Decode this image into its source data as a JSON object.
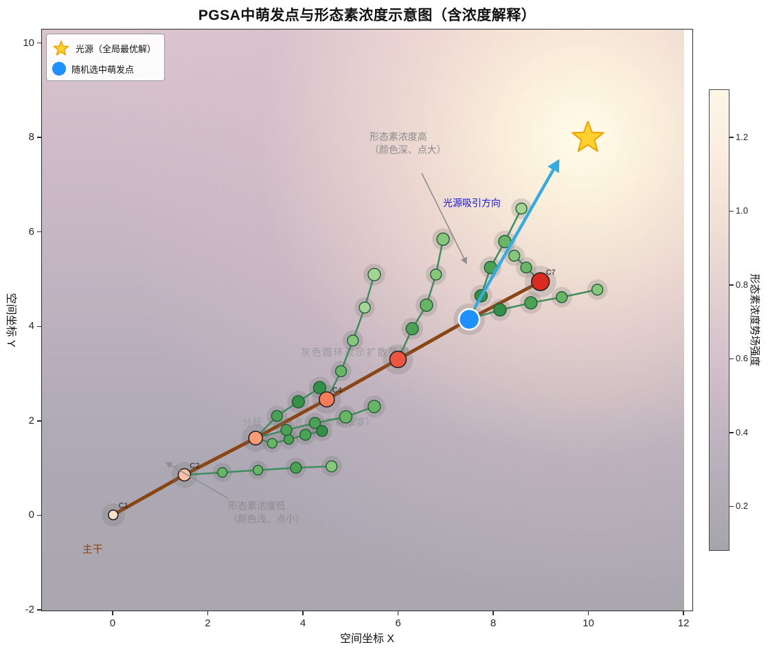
{
  "title": "PGSA中萌发点与形态素浓度示意图（含浓度解释）",
  "axes": {
    "xlabel": "空间坐标 X",
    "ylabel": "空间坐标 Y",
    "x_ticks": [
      "0",
      "2",
      "4",
      "6",
      "8",
      "10",
      "12"
    ],
    "x_tick_values": [
      0,
      2,
      4,
      6,
      8,
      10,
      12
    ],
    "y_ticks": [
      "-2",
      "0",
      "2",
      "4",
      "6",
      "8",
      "10"
    ],
    "y_tick_values": [
      -2,
      0,
      2,
      4,
      6,
      8,
      10
    ],
    "xlim": [
      -1.5,
      12.2
    ],
    "ylim": [
      -2.03,
      10.3
    ]
  },
  "colorbar": {
    "label": "形态素浓度势场强度",
    "tick_labels": [
      "0.2",
      "0.4",
      "0.6",
      "0.8",
      "1.0",
      "1.2"
    ],
    "tick_values": [
      0.2,
      0.4,
      0.6,
      0.8,
      1.0,
      1.2
    ],
    "vmin": 0.08,
    "vmax": 1.33,
    "gradient_stops": [
      "#a7a4ab",
      "#b3adb8",
      "#c4b6c3",
      "#d5c2cc",
      "#e4d1d2",
      "#f0e0d5",
      "#f9edde",
      "#fdf6e6"
    ]
  },
  "legend": {
    "items": [
      {
        "icon": "star-icon",
        "label": "光源（全局最优解）"
      },
      {
        "icon": "blue-dot-icon",
        "label": "随机选中萌发点"
      }
    ]
  },
  "chart_data": {
    "type": "scatter",
    "field": {
      "glow_center_pct": [
        84,
        18.6
      ],
      "extent_right_x": 12,
      "glow_stops": [
        [
          "rgba(255,253,232,1)",
          0
        ],
        [
          "rgba(252,241,219,0.95)",
          10
        ],
        [
          "rgba(245,222,211,0.75)",
          25
        ],
        [
          "rgba(216,191,201,0.35)",
          45
        ],
        [
          "rgba(190,176,196,0)",
          66
        ]
      ],
      "base_stops": [
        [
          "#dac4cf",
          0
        ],
        [
          "#c3b4c1",
          40
        ],
        [
          "#aeaab6",
          70
        ],
        [
          "#a9a6ae",
          100
        ]
      ]
    },
    "trunk": {
      "color": "#8b4513",
      "width": 5,
      "path": [
        [
          0,
          0
        ],
        [
          1.5,
          0.85
        ],
        [
          3,
          1.63
        ],
        [
          4.5,
          2.45
        ],
        [
          6,
          3.3
        ],
        [
          7.5,
          4.15
        ],
        [
          9,
          4.95
        ]
      ],
      "nodes": [
        {
          "id": "C1",
          "x": 0,
          "y": 0,
          "r": 7,
          "color": "#fee0cd",
          "label": true
        },
        {
          "id": "C2",
          "x": 1.5,
          "y": 0.85,
          "r": 9,
          "color": "#fcc2a5",
          "label": true
        },
        {
          "id": "C3",
          "x": 3.0,
          "y": 1.63,
          "r": 10,
          "color": "#fc9b76",
          "label": false
        },
        {
          "id": "C4",
          "x": 4.5,
          "y": 2.45,
          "r": 11,
          "color": "#f97c58",
          "label": true
        },
        {
          "id": "C5",
          "x": 6.0,
          "y": 3.3,
          "r": 12,
          "color": "#ee5540",
          "label": false
        },
        {
          "id": "C7",
          "x": 9.0,
          "y": 4.95,
          "r": 13,
          "color": "#d92b20",
          "label": true
        }
      ]
    },
    "selected_point": {
      "x": 7.5,
      "y": 4.15,
      "r": 15,
      "color": "#1e90ff",
      "edge": "#ffffff"
    },
    "light_source": {
      "x": 10,
      "y": 8,
      "size": 24,
      "color": "#ffd02e",
      "edge": "#f0a202"
    },
    "attraction_arrow": {
      "from": [
        7.62,
        4.4
      ],
      "to": [
        9.4,
        7.55
      ],
      "color": "#35abe2",
      "width": 4.5
    },
    "branch_color": "#3c8f5c",
    "branch_width": 2.5,
    "green_palette": [
      "#ddeecd",
      "#c2e3b2",
      "#a5d595",
      "#86c77c",
      "#68b566",
      "#4ca254",
      "#358f47",
      "#26793a"
    ],
    "halo": {
      "color": "rgba(110,110,110,0.22)",
      "extra_r": 7
    },
    "branches": [
      {
        "from": [
          1.5,
          0.85
        ],
        "points": [
          [
            2.3,
            0.9,
            7,
            4
          ],
          [
            3.05,
            0.95,
            7,
            4
          ],
          [
            3.85,
            1.0,
            8,
            5
          ],
          [
            4.6,
            1.03,
            8,
            3
          ]
        ]
      },
      {
        "from": [
          3.0,
          1.63
        ],
        "points": [
          [
            3.65,
            1.8,
            8,
            5
          ],
          [
            4.25,
            1.95,
            8,
            5
          ],
          [
            4.9,
            2.08,
            9,
            4
          ],
          [
            5.5,
            2.3,
            9,
            4
          ]
        ]
      },
      {
        "from": [
          3.0,
          1.63
        ],
        "points": [
          [
            3.45,
            2.1,
            8,
            5
          ],
          [
            3.9,
            2.4,
            9,
            6
          ],
          [
            4.35,
            2.7,
            9,
            6
          ]
        ]
      },
      {
        "from": [
          3.0,
          1.63
        ],
        "points": [
          [
            3.35,
            1.52,
            7,
            4
          ],
          [
            3.7,
            1.6,
            7,
            5
          ],
          [
            4.05,
            1.7,
            8,
            5
          ],
          [
            4.4,
            1.78,
            8,
            6
          ]
        ]
      },
      {
        "from": [
          4.5,
          2.45
        ],
        "points": [
          [
            4.8,
            3.05,
            8,
            4
          ],
          [
            5.05,
            3.7,
            8,
            3
          ],
          [
            5.3,
            4.4,
            8,
            2
          ],
          [
            5.5,
            5.1,
            9,
            2
          ]
        ]
      },
      {
        "from": [
          6.0,
          3.3
        ],
        "points": [
          [
            6.3,
            3.95,
            9,
            5
          ],
          [
            6.6,
            4.45,
            9,
            4
          ],
          [
            6.8,
            5.1,
            8,
            3
          ],
          [
            6.95,
            5.85,
            9,
            3
          ]
        ]
      },
      {
        "from": [
          7.5,
          4.15
        ],
        "points": [
          [
            7.75,
            4.65,
            9,
            6
          ],
          [
            7.95,
            5.25,
            9,
            5
          ],
          [
            8.25,
            5.8,
            9,
            4
          ],
          [
            8.6,
            6.5,
            8,
            2
          ]
        ]
      },
      {
        "from": [
          7.5,
          4.15
        ],
        "points": [
          [
            8.15,
            4.35,
            9,
            6
          ],
          [
            8.8,
            4.5,
            9,
            5
          ],
          [
            9.45,
            4.62,
            8,
            4
          ],
          [
            10.2,
            4.78,
            8,
            3
          ]
        ]
      },
      {
        "from": [
          9.0,
          4.95
        ],
        "points": [
          [
            8.7,
            5.25,
            8,
            4
          ],
          [
            8.45,
            5.5,
            8,
            3
          ]
        ]
      }
    ],
    "annotations": [
      {
        "id": "high",
        "lines": [
          "形态素浓度高",
          "（颜色深、点大）"
        ],
        "x": 5.4,
        "y": 7.95,
        "color": "#8c8c8c",
        "size": 14,
        "layer": "top",
        "arrow": {
          "from": [
            6.5,
            7.25
          ],
          "to": [
            7.45,
            5.32
          ]
        }
      },
      {
        "id": "low",
        "lines": [
          "形态素浓度低",
          "（颜色浅、点小）"
        ],
        "x": 2.42,
        "y": 0.12,
        "color": "#8c8c8c",
        "size": 14,
        "layer": "top",
        "arrow": {
          "from": [
            2.42,
            0.35
          ],
          "to": [
            1.1,
            1.12
          ]
        }
      },
      {
        "id": "direction",
        "lines": [
          "光源吸引方向"
        ],
        "x": 6.95,
        "y": 6.55,
        "color": "#1515dd",
        "size": 14,
        "layer": "top",
        "arrow": null
      },
      {
        "id": "ring",
        "lines": [
          "灰色圆环表示扩散范围"
        ],
        "x": 3.95,
        "y": 3.38,
        "color": "#9a9a9a",
        "size": 14,
        "spacing": "2px",
        "layer": "under",
        "arrow": null
      },
      {
        "id": "branch",
        "lines": [
          "分枝（颜色表示形态素浓度）"
        ],
        "x": 2.72,
        "y": 1.9,
        "color": "#9a9a9a",
        "size": 14,
        "spacing": "1px",
        "layer": "under",
        "arrow": null
      },
      {
        "id": "trunk",
        "lines": [
          "主干"
        ],
        "x": -0.65,
        "y": -0.8,
        "color": "#8b4513",
        "size": 15,
        "layer": "top",
        "arrow": null
      }
    ]
  }
}
